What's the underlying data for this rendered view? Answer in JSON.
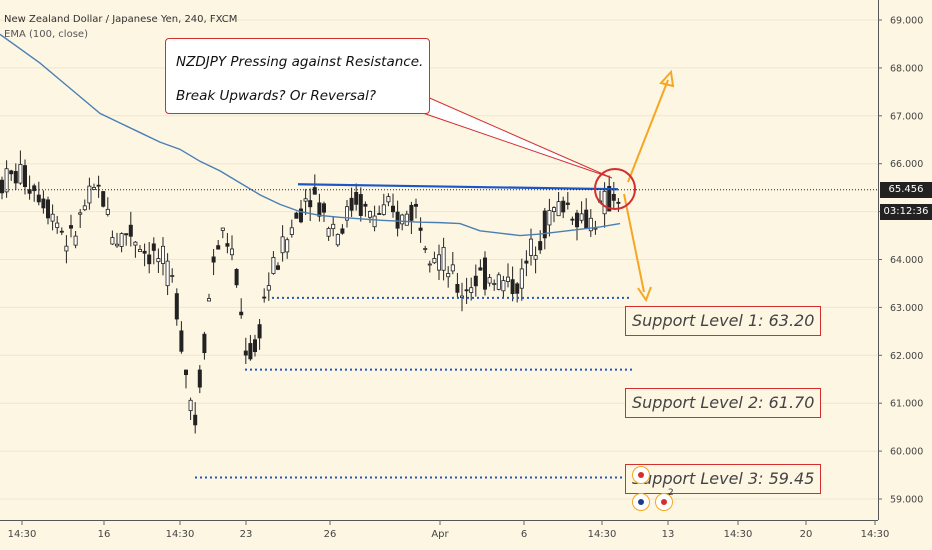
{
  "header": {
    "title": "New Zealand Dollar / Japanese Yen, 240, FXCM",
    "indicator": "EMA (100, close)"
  },
  "annotations": {
    "callout_line1": "NZDJPY Pressing against Resistance.",
    "callout_line2": "Break Upwards? Or Reversal?",
    "support1": "Support Level 1: 63.20",
    "support2": "Support Level 2: 61.70",
    "support3": "Support Level 3: 59.45"
  },
  "price_axis": {
    "current_price": "65.456",
    "countdown": "03:12:36"
  },
  "events": {
    "count_label": "2"
  },
  "colors": {
    "background": "#fdf6e3",
    "ema": "#4a7fb5",
    "resistance": "#1e56c6",
    "support": "#1e56c6",
    "callout_border": "#d32f2f",
    "arrows": "#f5a623",
    "candle_up": "#ffffff",
    "candle_down": "#222222",
    "price_label_bg": "#222222"
  },
  "chart_data": {
    "type": "candlestick",
    "title": "New Zealand Dollar / Japanese Yen, 240, FXCM",
    "ylim": [
      58.6,
      69.3
    ],
    "y_ticks": [
      "69.000",
      "68.000",
      "67.000",
      "66.000",
      "65.000",
      "64.000",
      "63.000",
      "62.000",
      "61.000",
      "60.000",
      "59.000"
    ],
    "x_ticks": [
      "14:30",
      "16",
      "14:30",
      "23",
      "26",
      "Apr",
      "6",
      "14:30",
      "13",
      "14:30",
      "20",
      "14:30"
    ],
    "resistance_level": 65.55,
    "support_levels": [
      63.2,
      61.7,
      59.45
    ],
    "last_price": 65.456,
    "ema_series_name": "EMA (100, close)",
    "ema": [
      [
        0,
        68.7
      ],
      [
        20,
        68.4
      ],
      [
        40,
        68.1
      ],
      [
        60,
        67.75
      ],
      [
        80,
        67.4
      ],
      [
        100,
        67.05
      ],
      [
        120,
        66.85
      ],
      [
        140,
        66.65
      ],
      [
        160,
        66.45
      ],
      [
        180,
        66.3
      ],
      [
        200,
        66.05
      ],
      [
        220,
        65.85
      ],
      [
        240,
        65.6
      ],
      [
        260,
        65.35
      ],
      [
        280,
        65.15
      ],
      [
        300,
        65.0
      ],
      [
        320,
        64.92
      ],
      [
        340,
        64.88
      ],
      [
        360,
        64.85
      ],
      [
        380,
        64.82
      ],
      [
        400,
        64.8
      ],
      [
        420,
        64.78
      ],
      [
        440,
        64.77
      ],
      [
        460,
        64.75
      ],
      [
        480,
        64.6
      ],
      [
        500,
        64.55
      ],
      [
        520,
        64.5
      ],
      [
        540,
        64.53
      ],
      [
        560,
        64.58
      ],
      [
        580,
        64.63
      ],
      [
        600,
        64.68
      ],
      [
        620,
        64.75
      ]
    ]
  }
}
